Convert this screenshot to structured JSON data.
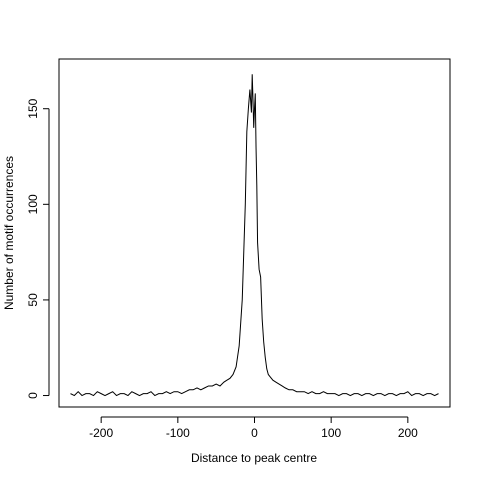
{
  "chart_data": {
    "type": "line",
    "title": "",
    "xlabel": "Distance to peak centre",
    "ylabel": "Number of motif occurrences",
    "xlim": [
      -255,
      255
    ],
    "ylim": [
      -6,
      176
    ],
    "x_ticks": [
      -200,
      -100,
      0,
      100,
      200
    ],
    "x_tick_labels": [
      "-200",
      "-100",
      "0",
      "100",
      "200"
    ],
    "y_ticks": [
      0,
      50,
      100,
      150
    ],
    "y_tick_labels": [
      "0",
      "50",
      "100",
      "150"
    ],
    "grid": false,
    "legend": "none",
    "line_color": "#000000",
    "series": [
      {
        "x": [
          -240,
          -235,
          -230,
          -225,
          -220,
          -215,
          -210,
          -205,
          -200,
          -195,
          -190,
          -185,
          -180,
          -175,
          -170,
          -165,
          -160,
          -155,
          -150,
          -145,
          -140,
          -135,
          -130,
          -125,
          -120,
          -115,
          -110,
          -105,
          -100,
          -95,
          -90,
          -85,
          -80,
          -75,
          -70,
          -65,
          -60,
          -55,
          -50,
          -45,
          -40,
          -36,
          -32,
          -28,
          -24,
          -20,
          -16,
          -12,
          -10,
          -8,
          -6,
          -4,
          -3,
          -2,
          -1,
          0,
          1,
          2,
          3,
          4,
          6,
          8,
          10,
          12,
          14,
          16,
          18,
          20,
          24,
          28,
          32,
          36,
          40,
          45,
          50,
          55,
          60,
          65,
          70,
          75,
          80,
          85,
          90,
          95,
          100,
          105,
          110,
          115,
          120,
          125,
          130,
          135,
          140,
          145,
          150,
          155,
          160,
          165,
          170,
          175,
          180,
          185,
          190,
          195,
          200,
          205,
          210,
          215,
          220,
          225,
          230,
          235,
          240
        ],
        "y": [
          1,
          0,
          2,
          0,
          1,
          1,
          0,
          2,
          1,
          0,
          1,
          2,
          0,
          1,
          1,
          0,
          2,
          1,
          0,
          1,
          1,
          2,
          0,
          1,
          1,
          2,
          1,
          2,
          2,
          1,
          2,
          3,
          3,
          4,
          3,
          4,
          5,
          5,
          6,
          5,
          7,
          8,
          9,
          11,
          15,
          26,
          50,
          100,
          138,
          150,
          160,
          148,
          168,
          155,
          140,
          150,
          158,
          130,
          110,
          80,
          66,
          62,
          40,
          28,
          20,
          14,
          11,
          10,
          8,
          7,
          6,
          5,
          4,
          3,
          3,
          2,
          2,
          2,
          1,
          2,
          1,
          1,
          2,
          1,
          1,
          1,
          0,
          1,
          1,
          0,
          1,
          1,
          0,
          1,
          1,
          0,
          1,
          1,
          0,
          1,
          1,
          0,
          1,
          1,
          2,
          0,
          1,
          1,
          0,
          1,
          1,
          0,
          1
        ]
      }
    ]
  }
}
